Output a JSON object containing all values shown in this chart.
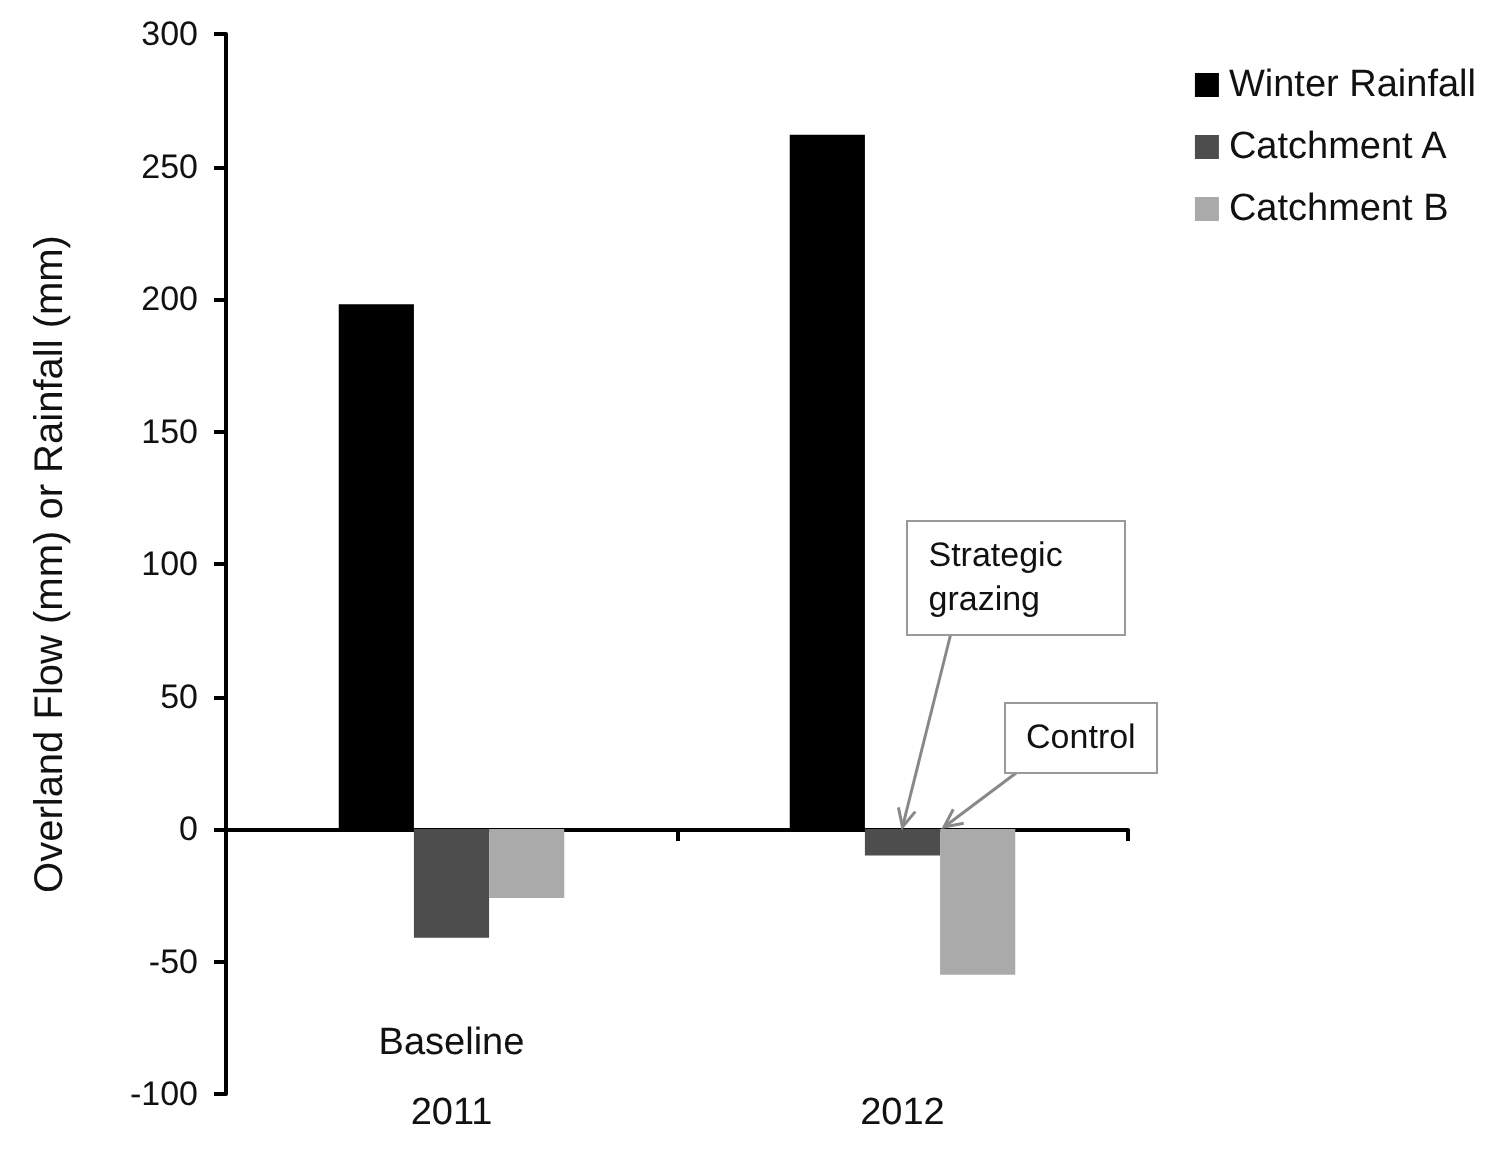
{
  "chart_data": {
    "type": "bar",
    "ylabel": "Overland Flow (mm) or Rainfall (mm)",
    "categories": [
      "2011",
      "2012"
    ],
    "series": [
      {
        "name": "Winter Rainfall",
        "color": "#000000",
        "values": [
          198,
          262
        ]
      },
      {
        "name": "Catchment A",
        "color": "#4d4d4d",
        "values": [
          -41,
          -10
        ]
      },
      {
        "name": "Catchment B",
        "color": "#aaaaaa",
        "values": [
          -26,
          -55
        ]
      }
    ],
    "ylim": [
      -100,
      300
    ],
    "yticks": [
      -100,
      -50,
      0,
      50,
      100,
      150,
      200,
      250,
      300
    ],
    "legend": "top right",
    "annotations": [
      "Baseline",
      {
        "text": "Strategic grazing",
        "x": "2012",
        "y": 0
      },
      "Control"
    ]
  }
}
